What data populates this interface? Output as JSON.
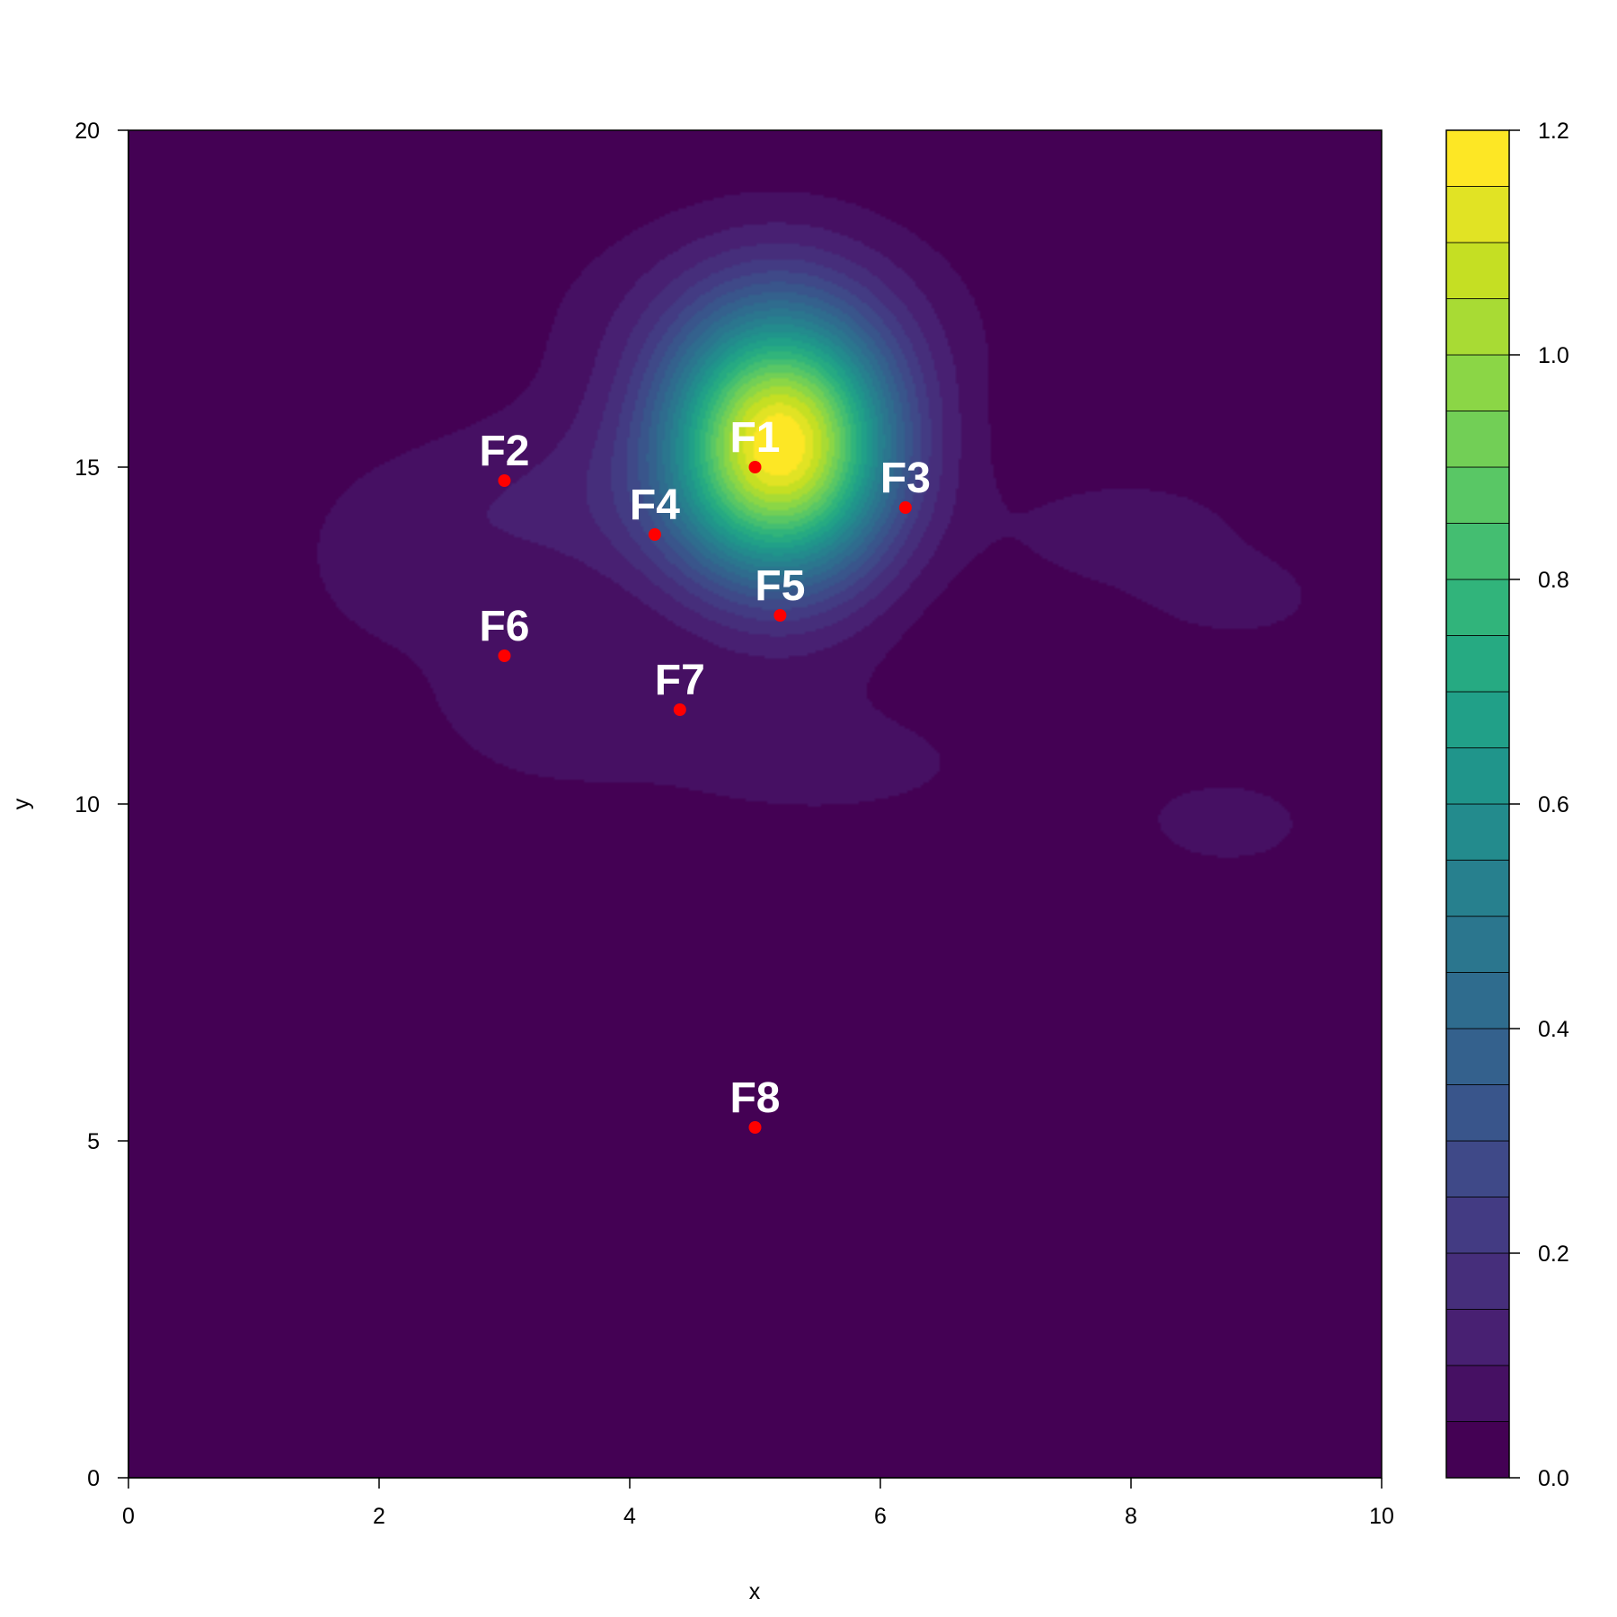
{
  "chart_data": {
    "type": "heatmap",
    "subtype": "filled-contour",
    "title": "",
    "xlabel": "x",
    "ylabel": "y",
    "xlim": [
      0,
      10
    ],
    "ylim": [
      0,
      20
    ],
    "x_ticks": [
      "0",
      "2",
      "4",
      "6",
      "8",
      "10"
    ],
    "y_ticks": [
      "0",
      "5",
      "10",
      "15",
      "20"
    ],
    "colorbar": {
      "range": [
        0,
        1.2
      ],
      "step": 0.05,
      "ticks": [
        "0.0",
        "0.2",
        "0.4",
        "0.6",
        "0.8",
        "1.0",
        "1.2"
      ],
      "colormap": "viridis"
    },
    "grid": false,
    "points": [
      {
        "label": "F1",
        "x": 5.0,
        "y": 15.0
      },
      {
        "label": "F2",
        "x": 3.0,
        "y": 14.8
      },
      {
        "label": "F3",
        "x": 6.2,
        "y": 14.4
      },
      {
        "label": "F4",
        "x": 4.2,
        "y": 14.0
      },
      {
        "label": "F5",
        "x": 5.2,
        "y": 12.8
      },
      {
        "label": "F6",
        "x": 3.0,
        "y": 12.2
      },
      {
        "label": "F7",
        "x": 4.4,
        "y": 11.4
      },
      {
        "label": "F8",
        "x": 5.0,
        "y": 5.2
      }
    ],
    "density_peaks": [
      {
        "x": 5.2,
        "y": 15.3,
        "height": 1.17
      },
      {
        "x": 5.0,
        "y": 17.2,
        "height": 0.08
      },
      {
        "x": 3.5,
        "y": 14.4,
        "height": 0.1
      },
      {
        "x": 3.2,
        "y": 11.6,
        "height": 0.06
      },
      {
        "x": 5.5,
        "y": 10.6,
        "height": 0.06
      },
      {
        "x": 8.0,
        "y": 14.0,
        "height": 0.07
      },
      {
        "x": 8.9,
        "y": 13.0,
        "height": 0.06
      },
      {
        "x": 8.8,
        "y": 9.7,
        "height": 0.07
      },
      {
        "x": 2.0,
        "y": 13.5,
        "height": 0.055
      }
    ],
    "point_color": "#ff0000",
    "label_color": "#ffffff",
    "background_level_color": "#440154"
  }
}
